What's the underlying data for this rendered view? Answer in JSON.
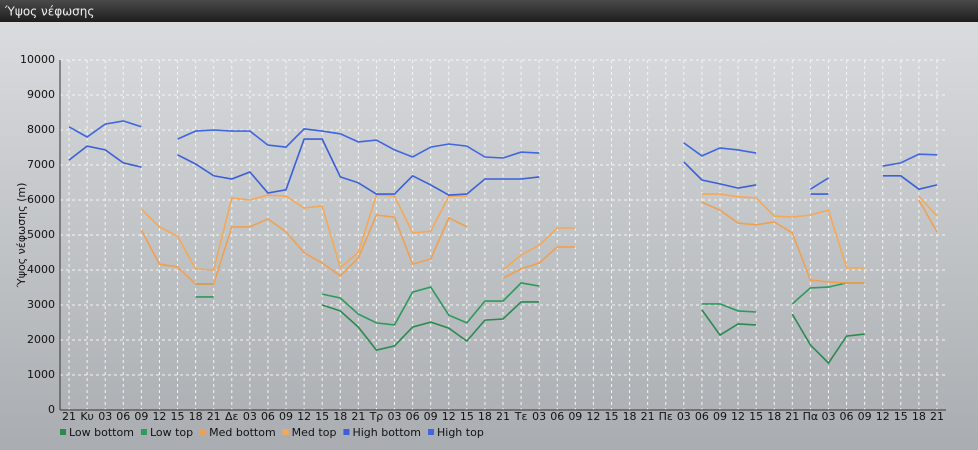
{
  "chart_data": {
    "type": "line",
    "title": "Ύψος νέφωσης",
    "y_label": "Ύψος νέφωσης (m)",
    "categories": [
      "21",
      "Κυ",
      "03",
      "06",
      "09",
      "12",
      "15",
      "18",
      "21",
      "Δε",
      "03",
      "06",
      "09",
      "12",
      "15",
      "18",
      "21",
      "Τρ",
      "03",
      "06",
      "09",
      "12",
      "15",
      "18",
      "21",
      "Τε",
      "03",
      "06",
      "09",
      "12",
      "15",
      "18",
      "21",
      "Πε",
      "03",
      "06",
      "09",
      "12",
      "15",
      "18",
      "21",
      "Πα",
      "03",
      "06",
      "09",
      "12",
      "15",
      "18",
      "21"
    ],
    "ylim": [
      0,
      10000
    ],
    "yticks": [
      0,
      1000,
      2000,
      3000,
      4000,
      5000,
      6000,
      7000,
      8000,
      9000,
      10000
    ],
    "grid": true,
    "series": [
      {
        "name": "Low bottom",
        "color": "#2a8a50",
        "values": [
          null,
          null,
          null,
          null,
          null,
          null,
          null,
          3600,
          3600,
          null,
          null,
          null,
          null,
          null,
          3000,
          2830,
          2370,
          1710,
          1830,
          2370,
          2510,
          2340,
          1970,
          2570,
          2600,
          3090,
          3090,
          null,
          null,
          null,
          null,
          null,
          null,
          null,
          null,
          2860,
          2140,
          2460,
          2430,
          null,
          2740,
          1860,
          1340,
          2110,
          2170,
          null,
          null,
          null,
          null
        ]
      },
      {
        "name": "Low top",
        "color": "#2e9a5c",
        "values": [
          null,
          null,
          null,
          null,
          null,
          null,
          null,
          3230,
          3230,
          null,
          null,
          null,
          null,
          null,
          3310,
          3200,
          2740,
          2490,
          2430,
          3370,
          3510,
          2710,
          2490,
          3110,
          3110,
          3630,
          3540,
          null,
          null,
          null,
          null,
          null,
          null,
          null,
          null,
          3030,
          3030,
          2830,
          2800,
          null,
          3030,
          3490,
          3510,
          3630,
          3630,
          null,
          null,
          null,
          null
        ]
      },
      {
        "name": "Med bottom",
        "color": "#f0a050",
        "values": [
          null,
          null,
          null,
          null,
          5140,
          4170,
          4090,
          3600,
          3600,
          5230,
          5230,
          5460,
          5090,
          4490,
          4200,
          3830,
          4340,
          5570,
          5510,
          4170,
          4310,
          5490,
          5230,
          null,
          3770,
          4030,
          4200,
          4660,
          4660,
          null,
          null,
          null,
          null,
          null,
          null,
          5940,
          5710,
          5340,
          5290,
          5370,
          5060,
          3710,
          3660,
          3630,
          3630,
          null,
          null,
          6000,
          5090
        ]
      },
      {
        "name": "Med top",
        "color": "#f5a855",
        "values": [
          null,
          null,
          null,
          null,
          5740,
          5230,
          4970,
          4030,
          4000,
          6060,
          6000,
          6140,
          6110,
          5770,
          5830,
          4060,
          4510,
          6140,
          6110,
          5060,
          5110,
          6110,
          6110,
          null,
          4000,
          4430,
          4710,
          5200,
          5200,
          null,
          null,
          null,
          null,
          null,
          null,
          6170,
          6170,
          6090,
          6060,
          5540,
          5510,
          5570,
          5710,
          4060,
          4060,
          null,
          null,
          6110,
          5540
        ]
      },
      {
        "name": "High bottom",
        "color": "#3a5fd8",
        "values": [
          7140,
          7540,
          7430,
          7060,
          6940,
          null,
          7290,
          7030,
          6690,
          6600,
          6800,
          6200,
          6290,
          7740,
          7740,
          6660,
          6490,
          6170,
          6170,
          6690,
          6430,
          6140,
          6170,
          6600,
          6600,
          6600,
          6660,
          null,
          null,
          null,
          null,
          null,
          null,
          null,
          7090,
          6570,
          6460,
          6340,
          6430,
          null,
          null,
          6170,
          6170,
          null,
          null,
          6690,
          6690,
          6310,
          6430
        ]
      },
      {
        "name": "High top",
        "color": "#3f66e0",
        "values": [
          8090,
          7800,
          8170,
          8260,
          8090,
          null,
          7740,
          7970,
          8000,
          7970,
          7970,
          7570,
          7510,
          8030,
          7970,
          7890,
          7660,
          7710,
          7430,
          7230,
          7510,
          7600,
          7540,
          7230,
          7200,
          7370,
          7340,
          null,
          null,
          null,
          null,
          null,
          null,
          null,
          7630,
          7260,
          7490,
          7430,
          7340,
          null,
          null,
          6310,
          6630,
          null,
          null,
          6970,
          7060,
          7310,
          7290
        ]
      }
    ]
  }
}
